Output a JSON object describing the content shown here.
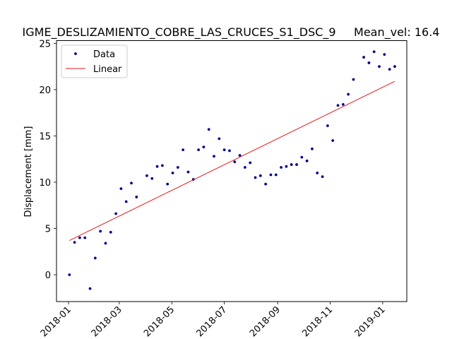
{
  "chart_data": {
    "type": "scatter",
    "title": "IGME_DESLIZAMIENTO_COBRE_LAS_CRUCES_S1_DSC_9     Mean_vel: 16.4",
    "xlabel": "",
    "ylabel": "Displacement [mm]",
    "x_axis_type": "date",
    "xlim": [
      "2017-12-18",
      "2019-01-29"
    ],
    "ylim": [
      -2.9,
      25.3
    ],
    "x_ticks": [
      "2018-01-01",
      "2018-03-01",
      "2018-05-01",
      "2018-07-01",
      "2018-09-01",
      "2018-11-01",
      "2019-01-01"
    ],
    "x_tick_labels": [
      "2018-01",
      "2018-03",
      "2018-05",
      "2018-07",
      "2018-09",
      "2018-11",
      "2019-01"
    ],
    "y_ticks": [
      0,
      5,
      10,
      15,
      20,
      25
    ],
    "y_tick_labels": [
      "0",
      "5",
      "10",
      "15",
      "20",
      "25"
    ],
    "grid": false,
    "legend_position": "top-left",
    "series": [
      {
        "name": "Data",
        "kind": "points",
        "color": "#00008b",
        "x": [
          "2018-01-02",
          "2018-01-08",
          "2018-01-14",
          "2018-01-20",
          "2018-01-26",
          "2018-02-01",
          "2018-02-07",
          "2018-02-13",
          "2018-02-19",
          "2018-02-25",
          "2018-03-03",
          "2018-03-09",
          "2018-03-15",
          "2018-03-21",
          "2018-04-02",
          "2018-04-08",
          "2018-04-14",
          "2018-04-20",
          "2018-04-26",
          "2018-05-02",
          "2018-05-08",
          "2018-05-14",
          "2018-05-20",
          "2018-05-26",
          "2018-06-01",
          "2018-06-07",
          "2018-06-13",
          "2018-06-19",
          "2018-06-25",
          "2018-07-01",
          "2018-07-07",
          "2018-07-13",
          "2018-07-19",
          "2018-07-25",
          "2018-07-31",
          "2018-08-06",
          "2018-08-12",
          "2018-08-18",
          "2018-08-24",
          "2018-08-30",
          "2018-09-05",
          "2018-09-11",
          "2018-09-17",
          "2018-09-23",
          "2018-09-29",
          "2018-10-05",
          "2018-10-11",
          "2018-10-17",
          "2018-10-23",
          "2018-10-29",
          "2018-11-04",
          "2018-11-10",
          "2018-11-16",
          "2018-11-22",
          "2018-11-28",
          "2018-12-10",
          "2018-12-16",
          "2018-12-22",
          "2018-12-28",
          "2019-01-03",
          "2019-01-09",
          "2019-01-15"
        ],
        "y": [
          0.0,
          3.5,
          4.0,
          4.0,
          -1.5,
          1.8,
          4.7,
          3.4,
          4.6,
          6.6,
          9.3,
          7.9,
          9.9,
          8.4,
          10.7,
          10.4,
          11.7,
          11.8,
          9.8,
          11.0,
          11.6,
          13.5,
          11.1,
          10.3,
          13.5,
          13.8,
          15.7,
          12.8,
          14.7,
          13.5,
          13.4,
          12.2,
          12.9,
          11.6,
          12.1,
          10.5,
          10.7,
          9.8,
          10.8,
          10.8,
          11.6,
          11.7,
          11.9,
          11.9,
          12.7,
          12.3,
          13.6,
          11.0,
          10.6,
          16.1,
          14.5,
          18.3,
          18.4,
          19.5,
          21.1,
          23.5,
          22.9,
          24.1,
          22.5,
          23.8,
          22.2,
          22.5
        ]
      },
      {
        "name": "Linear",
        "kind": "line",
        "color": "#e41a1c",
        "x": [
          "2018-01-02",
          "2019-01-15"
        ],
        "y": [
          3.7,
          20.9
        ]
      }
    ]
  }
}
